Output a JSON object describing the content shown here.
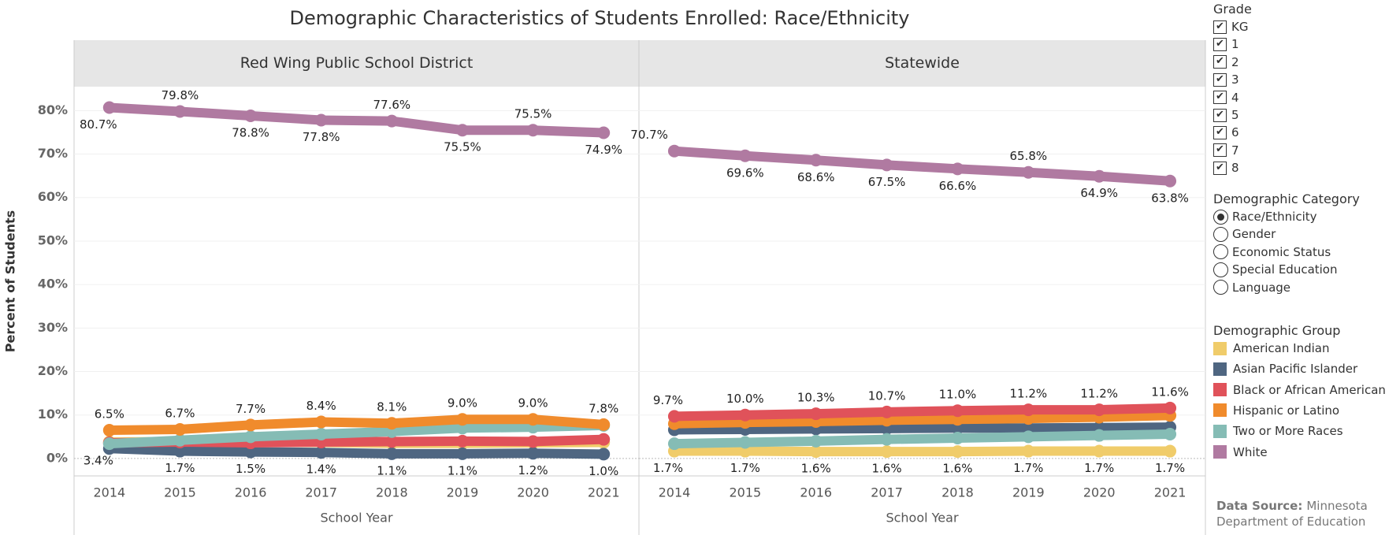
{
  "title": "Demographic Characteristics of Students Enrolled: Race/Ethnicity",
  "chart_data": [
    {
      "type": "line",
      "title": "Red Wing Public School District",
      "x_label": "School Year",
      "y_label": "Percent of Students",
      "categories": [
        "2014",
        "2015",
        "2016",
        "2017",
        "2018",
        "2019",
        "2020",
        "2021"
      ],
      "ylim": [
        -4,
        85.5
      ],
      "yticks": [
        {
          "value": 0,
          "label": "0%"
        },
        {
          "value": 10,
          "label": "10%"
        },
        {
          "value": 20,
          "label": "20%"
        },
        {
          "value": 30,
          "label": "30%"
        },
        {
          "value": 40,
          "label": "40%"
        },
        {
          "value": 50,
          "label": "50%"
        },
        {
          "value": 60,
          "label": "60%"
        },
        {
          "value": 70,
          "label": "70%"
        },
        {
          "value": 80,
          "label": "80%"
        }
      ],
      "grid": true,
      "series": [
        {
          "name": "American Indian",
          "color": "#f0cc6a",
          "values": [
            3.8,
            3.9,
            3.8,
            3.7,
            3.5,
            3.5,
            3.6,
            3.7
          ],
          "value_labels": [
            null,
            null,
            null,
            null,
            null,
            null,
            null,
            null
          ]
        },
        {
          "name": "Asian Pacific Islander",
          "color": "#4f6681",
          "values": [
            2.3,
            1.7,
            1.5,
            1.4,
            1.1,
            1.1,
            1.2,
            1.0
          ],
          "value_labels": [
            null,
            "1.7%",
            "1.5%",
            "1.4%",
            "1.1%",
            "1.1%",
            "1.2%",
            "1.0%"
          ]
        },
        {
          "name": "Black or African American",
          "color": "#e0525a",
          "values": [
            3.6,
            3.8,
            3.6,
            3.8,
            3.9,
            4.0,
            3.9,
            4.4
          ],
          "value_labels": [
            null,
            null,
            null,
            null,
            null,
            null,
            null,
            null
          ]
        },
        {
          "name": "Two or More Races",
          "color": "#85bcb5",
          "values": [
            3.4,
            4.2,
            5.0,
            5.6,
            6.2,
            7.0,
            7.2,
            7.6
          ],
          "value_labels": [
            "3.4%",
            null,
            null,
            null,
            null,
            null,
            null,
            null
          ]
        },
        {
          "name": "Hispanic or Latino",
          "color": "#f08b2c",
          "values": [
            6.5,
            6.7,
            7.7,
            8.4,
            8.1,
            9.0,
            9.0,
            7.8
          ],
          "value_labels": [
            "6.5%",
            "6.7%",
            "7.7%",
            "8.4%",
            "8.1%",
            "9.0%",
            "9.0%",
            "7.8%"
          ]
        },
        {
          "name": "White",
          "color": "#b07aa1",
          "values": [
            80.7,
            79.8,
            78.8,
            77.8,
            77.6,
            75.5,
            75.5,
            74.9
          ],
          "value_labels": [
            "80.7%",
            "79.8%",
            "78.8%",
            "77.8%",
            "77.6%",
            "75.5%",
            "75.5%",
            "74.9%"
          ]
        }
      ]
    },
    {
      "type": "line",
      "title": "Statewide",
      "x_label": "School Year",
      "categories": [
        "2014",
        "2015",
        "2016",
        "2017",
        "2018",
        "2019",
        "2020",
        "2021"
      ],
      "ylim": [
        -4,
        85.5
      ],
      "grid": true,
      "series": [
        {
          "name": "American Indian",
          "color": "#f0cc6a",
          "values": [
            1.7,
            1.7,
            1.6,
            1.6,
            1.6,
            1.7,
            1.7,
            1.7
          ],
          "value_labels": [
            "1.7%",
            "1.7%",
            "1.6%",
            "1.6%",
            "1.6%",
            "1.7%",
            "1.7%",
            "1.7%"
          ]
        },
        {
          "name": "Asian Pacific Islander",
          "color": "#4f6681",
          "values": [
            6.6,
            6.7,
            6.8,
            6.9,
            7.0,
            7.0,
            7.1,
            7.2
          ],
          "value_labels": [
            null,
            null,
            null,
            null,
            null,
            null,
            null,
            null
          ]
        },
        {
          "name": "Two or More Races",
          "color": "#85bcb5",
          "values": [
            3.4,
            3.7,
            4.0,
            4.4,
            4.7,
            5.0,
            5.3,
            5.6
          ],
          "value_labels": [
            null,
            null,
            null,
            null,
            null,
            null,
            null,
            null
          ]
        },
        {
          "name": "Hispanic or Latino",
          "color": "#f08b2c",
          "values": [
            8.0,
            8.3,
            8.5,
            8.8,
            9.0,
            9.2,
            9.5,
            9.9
          ],
          "value_labels": [
            null,
            null,
            null,
            null,
            null,
            null,
            null,
            null
          ]
        },
        {
          "name": "Black or African American",
          "color": "#e0525a",
          "values": [
            9.7,
            10.0,
            10.3,
            10.7,
            11.0,
            11.2,
            11.2,
            11.6
          ],
          "value_labels": [
            "9.7%",
            "10.0%",
            "10.3%",
            "10.7%",
            "11.0%",
            "11.2%",
            "11.2%",
            "11.6%"
          ]
        },
        {
          "name": "White",
          "color": "#b07aa1",
          "values": [
            70.7,
            69.6,
            68.6,
            67.5,
            66.6,
            65.8,
            64.9,
            63.8
          ],
          "value_labels": [
            "70.7%",
            "69.6%",
            "68.6%",
            "67.5%",
            "66.6%",
            "65.8%",
            "64.9%",
            "63.8%"
          ]
        }
      ]
    }
  ],
  "filters": {
    "grade": {
      "title": "Grade",
      "options": [
        "KG",
        "1",
        "2",
        "3",
        "4",
        "5",
        "6",
        "7",
        "8"
      ]
    },
    "category": {
      "title": "Demographic Category",
      "options": [
        "Race/Ethnicity",
        "Gender",
        "Economic Status",
        "Special Education",
        "Language"
      ],
      "selected": 0
    }
  },
  "legend": {
    "title": "Demographic Group",
    "entries": [
      "American Indian",
      "Asian Pacific Islander",
      "Black or African American",
      "Hispanic or Latino",
      "Two or More Races",
      "White"
    ],
    "colors": [
      "#f0cc6a",
      "#4f6681",
      "#e0525a",
      "#f08b2c",
      "#85bcb5",
      "#b07aa1"
    ]
  },
  "source": {
    "label": "Data Source:",
    "text": "Minnesota Department of Education"
  }
}
